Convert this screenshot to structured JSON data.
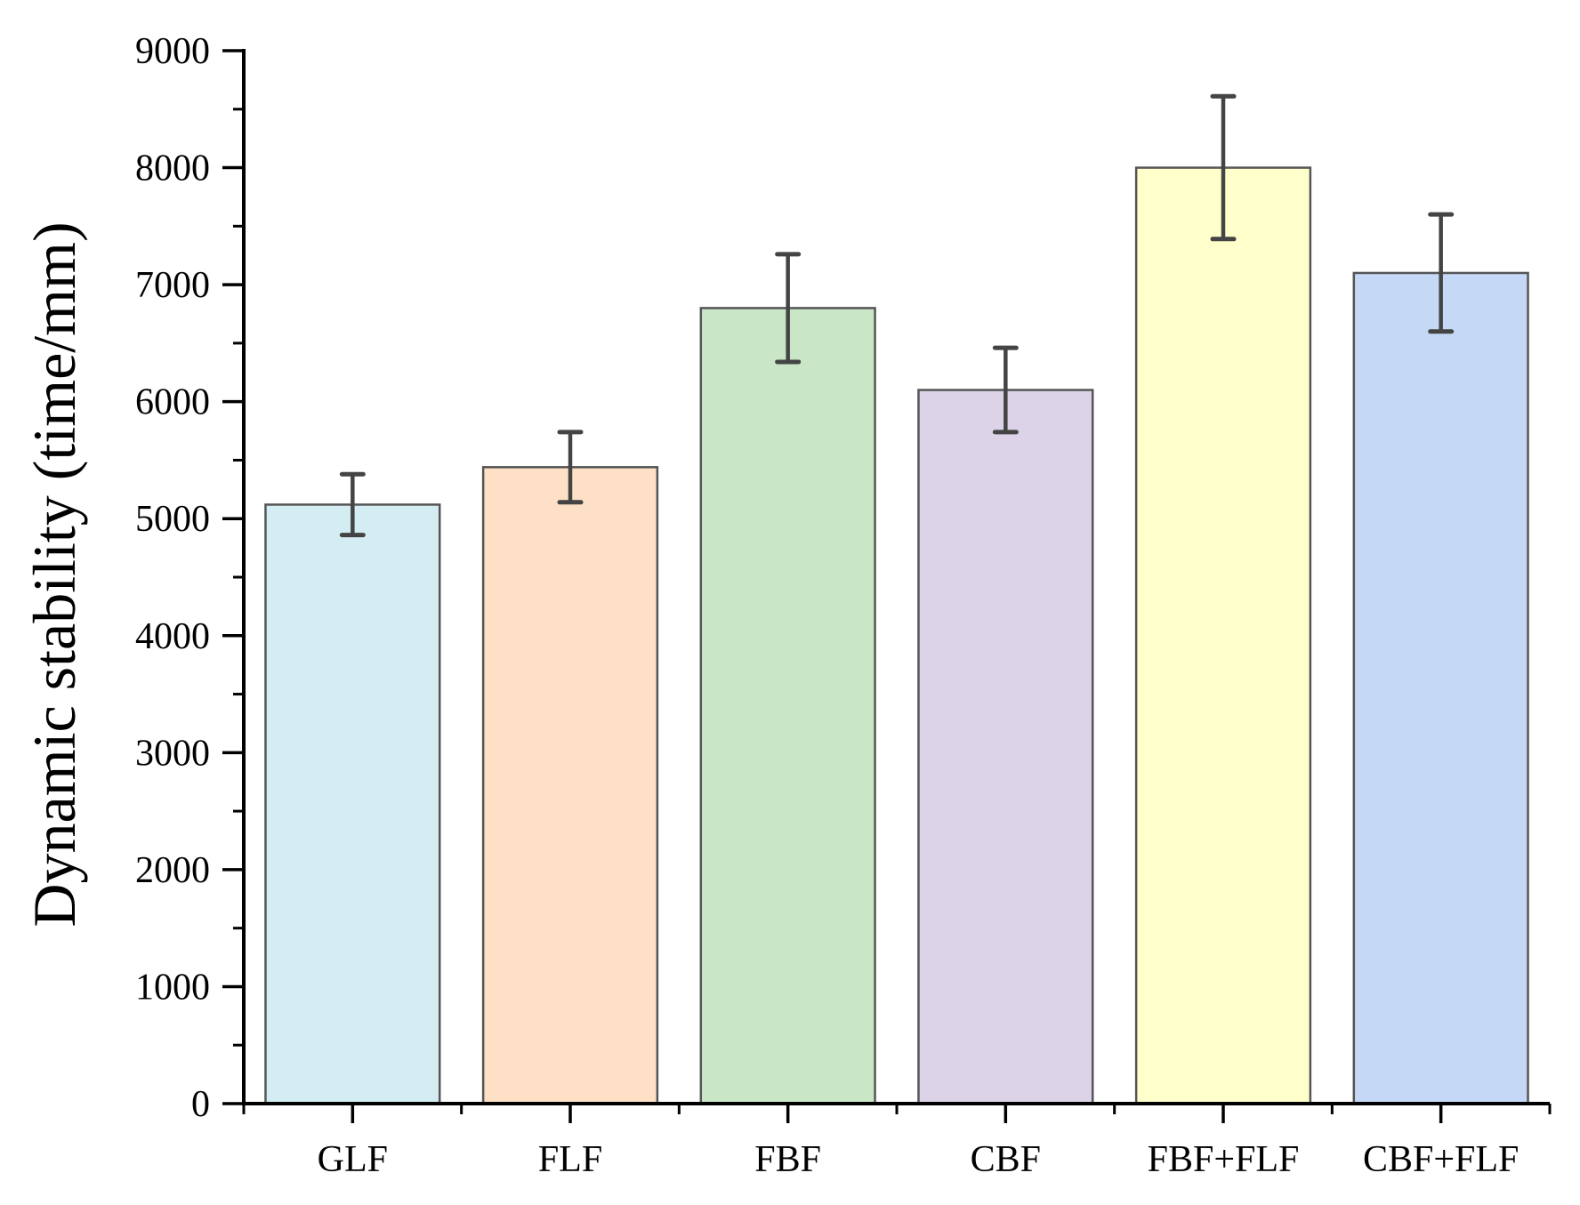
{
  "chart_data": {
    "type": "bar",
    "title": "",
    "xlabel": "",
    "ylabel": "Dynamic stability (time/mm)",
    "categories": [
      "GLF",
      "FLF",
      "FBF",
      "CBF",
      "FBF+FLF",
      "CBF+FLF"
    ],
    "values": [
      5120,
      5440,
      6800,
      6100,
      8000,
      7100
    ],
    "errors": [
      260,
      300,
      460,
      360,
      610,
      500
    ],
    "colors": [
      "#d4edf2",
      "#fde0c5",
      "#c9e6c6",
      "#dcd3e8",
      "#ffffcc",
      "#c5d8f5"
    ],
    "ylim": [
      0,
      9000
    ],
    "yticks": [
      0,
      1000,
      2000,
      3000,
      4000,
      5000,
      6000,
      7000,
      8000,
      9000
    ],
    "grid": false,
    "legend": "none"
  }
}
